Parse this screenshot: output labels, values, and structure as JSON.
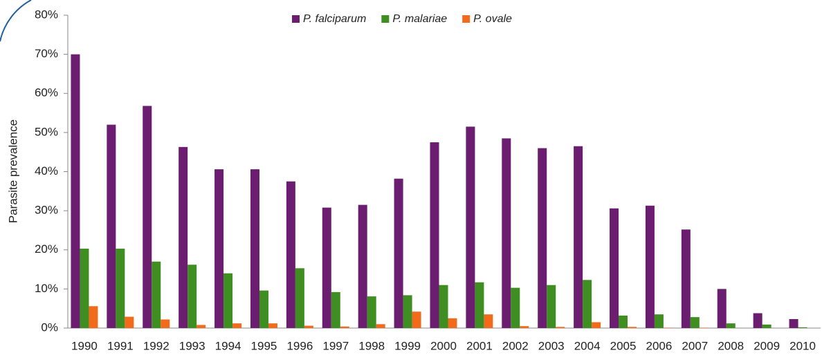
{
  "chart_data": {
    "type": "bar",
    "y_label": "Parasite prevalence",
    "categories": [
      "1990",
      "1991",
      "1992",
      "1993",
      "1994",
      "1995",
      "1996",
      "1997",
      "1998",
      "1999",
      "2000",
      "2001",
      "2002",
      "2003",
      "2004",
      "2005",
      "2006",
      "2007",
      "2008",
      "2009",
      "2010"
    ],
    "series": [
      {
        "name": "P. falciparum",
        "color": "#6b1d6f",
        "values": [
          70,
          52,
          56.8,
          46.3,
          40.6,
          40.6,
          37.5,
          30.8,
          31.5,
          38.2,
          47.5,
          51.5,
          48.5,
          46,
          46.5,
          30.6,
          31.3,
          25.2,
          10,
          3.8,
          2.3
        ]
      },
      {
        "name": "P. malariae",
        "color": "#3f8e22",
        "values": [
          20.3,
          20.3,
          17,
          16.2,
          14,
          9.6,
          15.3,
          9.2,
          8.1,
          8.4,
          11,
          11.7,
          10.3,
          11,
          12.3,
          3.2,
          3.5,
          2.8,
          1.2,
          0.9,
          0.2
        ]
      },
      {
        "name": "P. ovale",
        "color": "#f26b1d",
        "values": [
          5.6,
          2.9,
          2.2,
          0.8,
          1.2,
          1.2,
          0.6,
          0.4,
          1,
          4.2,
          2.5,
          3.5,
          0.5,
          0.3,
          1.5,
          0.3,
          0.1,
          0.1,
          0,
          0,
          0
        ]
      }
    ],
    "ylim": [
      0,
      80
    ],
    "yticks": [
      {
        "value": 0,
        "label": "0%"
      },
      {
        "value": 10,
        "label": "10%"
      },
      {
        "value": 20,
        "label": "20%"
      },
      {
        "value": 30,
        "label": "30%"
      },
      {
        "value": 40,
        "label": "40%"
      },
      {
        "value": 50,
        "label": "50%"
      },
      {
        "value": 60,
        "label": "60%"
      },
      {
        "value": 70,
        "label": "70%"
      },
      {
        "value": 80,
        "label": "80%"
      }
    ],
    "legend": "top"
  }
}
